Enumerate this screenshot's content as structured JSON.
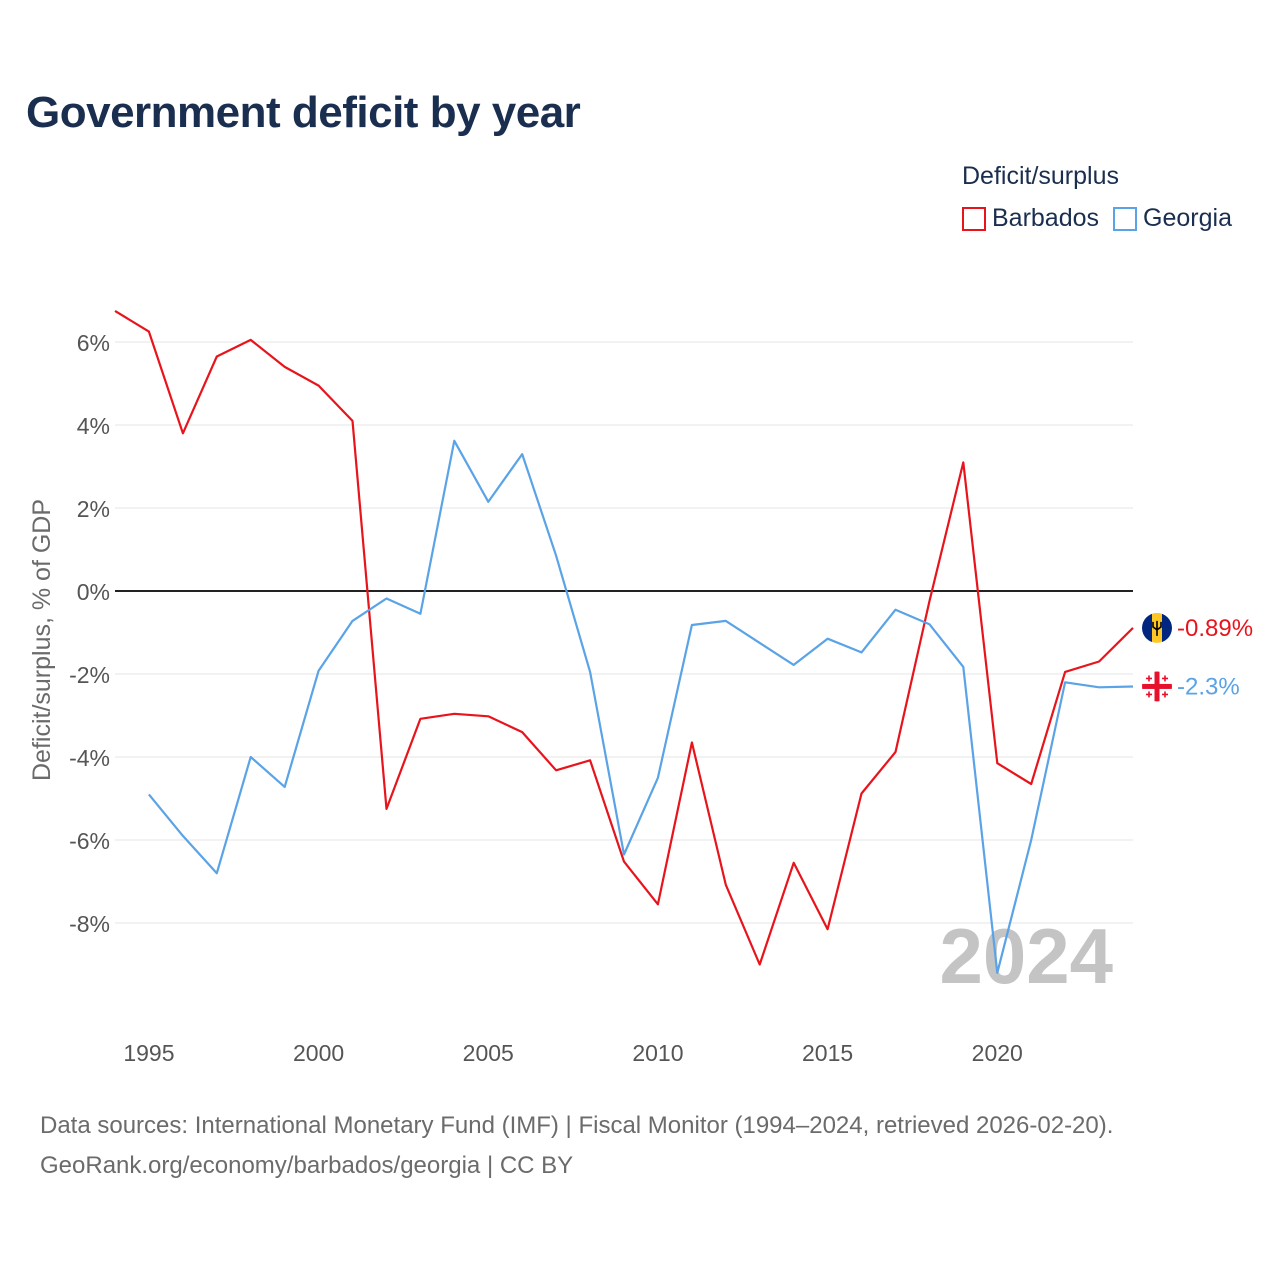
{
  "title": "Government deficit by year",
  "legend": {
    "title": "Deficit/surplus",
    "items": [
      {
        "label": "Barbados",
        "color": "#e8141c"
      },
      {
        "label": "Georgia",
        "color": "#5aa3e6"
      }
    ]
  },
  "chart_data": {
    "type": "line",
    "title": "Government deficit by year",
    "xlabel": "",
    "ylabel": "Deficit/surplus, % of GDP",
    "xlim": [
      1994,
      2024
    ],
    "ylim": [
      -10,
      7
    ],
    "yticks": [
      6,
      4,
      2,
      0,
      -2,
      -4,
      -6,
      -8
    ],
    "ytick_labels": [
      "6%",
      "4%",
      "2%",
      "0%",
      "-2%",
      "-4%",
      "-6%",
      "-8%"
    ],
    "xticks": [
      1995,
      2000,
      2005,
      2010,
      2015,
      2020
    ],
    "xtick_labels": [
      "1995",
      "2000",
      "2005",
      "2010",
      "2015",
      "2020"
    ],
    "watermark_year": "2024",
    "series": [
      {
        "name": "Barbados",
        "color": "#e8141c",
        "end_label": "-0.89%",
        "flag": "barbados-flag-icon",
        "x": [
          1994,
          1995,
          1996,
          1997,
          1998,
          1999,
          2000,
          2001,
          2002,
          2003,
          2004,
          2005,
          2006,
          2007,
          2008,
          2009,
          2010,
          2011,
          2012,
          2013,
          2014,
          2015,
          2016,
          2017,
          2018,
          2019,
          2020,
          2021,
          2022,
          2023,
          2024
        ],
        "values": [
          6.75,
          6.25,
          3.8,
          5.65,
          6.05,
          5.4,
          4.95,
          4.1,
          -5.25,
          -3.08,
          -2.96,
          -3.02,
          -3.4,
          -4.32,
          -4.08,
          -6.52,
          -7.55,
          -3.65,
          -7.08,
          -9.0,
          -6.55,
          -8.15,
          -4.88,
          -3.88,
          -0.25,
          3.1,
          -4.15,
          -4.65,
          -1.95,
          -1.7,
          -0.89
        ]
      },
      {
        "name": "Georgia",
        "color": "#5aa3e6",
        "end_label": "-2.3%",
        "flag": "georgia-flag-icon",
        "x": [
          1995,
          1996,
          1997,
          1998,
          1999,
          2000,
          2001,
          2002,
          2003,
          2004,
          2005,
          2006,
          2007,
          2008,
          2009,
          2010,
          2011,
          2012,
          2013,
          2014,
          2015,
          2016,
          2017,
          2018,
          2019,
          2020,
          2021,
          2022,
          2023,
          2024
        ],
        "values": [
          -4.9,
          -5.9,
          -6.8,
          -4.0,
          -4.72,
          -1.92,
          -0.72,
          -0.18,
          -0.55,
          3.62,
          2.15,
          3.3,
          0.85,
          -1.95,
          -6.35,
          -4.5,
          -0.82,
          -0.72,
          -1.25,
          -1.78,
          -1.15,
          -1.48,
          -0.45,
          -0.8,
          -1.83,
          -9.2,
          -6.0,
          -2.2,
          -2.32,
          -2.3
        ]
      }
    ]
  },
  "footer": {
    "sources": "Data sources: International Monetary Fund (IMF) | Fiscal Monitor (1994–2024, retrieved 2026-02-20).",
    "credit": "GeoRank.org/economy/barbados/georgia | CC BY"
  }
}
